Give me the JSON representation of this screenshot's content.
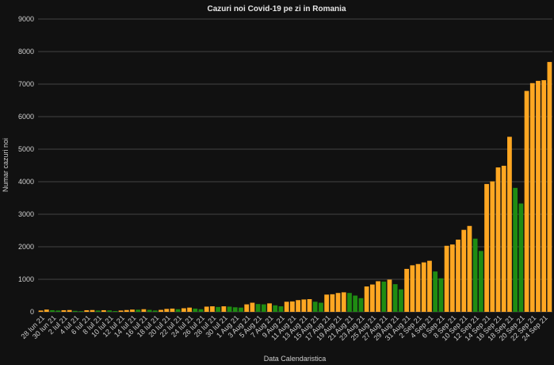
{
  "chart_data": {
    "type": "bar",
    "title": "Cazuri noi Covid-19 pe zi in Romania",
    "y_label": "Numar cazuri noi",
    "x_label": "Data Calendaristica",
    "categories": [
      "28 Iun 21",
      null,
      "30 Iun 21",
      null,
      "2 Iul 21",
      null,
      "4 Iul 21",
      null,
      "6 Iul 21",
      null,
      "8 Iul 21",
      null,
      "10 Iul 21",
      null,
      "12 Iul 21",
      null,
      "14 Iul 21",
      null,
      "16 Iul 21",
      null,
      "18 Iul 21",
      null,
      "20 Iul 21",
      null,
      "22 Iul 21",
      null,
      "24 Iul 21",
      null,
      "26 Iul 21",
      null,
      "28 Iul 21",
      null,
      "30 Iul 21",
      null,
      "1 Aug 21",
      null,
      "3 Aug 21",
      null,
      "5 Aug 21",
      null,
      "7 Aug 21",
      null,
      "9 Aug 21",
      null,
      "11 Aug 21",
      null,
      "13 Aug 21",
      null,
      "15 Aug 21",
      null,
      "17 Aug 21",
      null,
      "19 Aug 21",
      null,
      "21 Aug 21",
      null,
      "23 Aug 21",
      null,
      "25 Aug 21",
      null,
      "27 Aug 21",
      null,
      "29 Aug 21",
      null,
      "31 Aug 21",
      null,
      "2 Sep 21",
      null,
      "4 Sep 21",
      null,
      "6 Sep 21",
      null,
      "8 Sep 21",
      null,
      "10 Sep 21",
      null,
      "12 Sep 21",
      null,
      "14 Sep 21",
      null,
      "16 Sep 21",
      null,
      "18 Sep 21",
      null,
      "20 Sep 21",
      null,
      "22 Sep 21",
      null,
      "24 Sep 21",
      null
    ],
    "values": [
      40,
      70,
      50,
      40,
      50,
      55,
      30,
      20,
      50,
      55,
      40,
      50,
      45,
      25,
      40,
      55,
      70,
      65,
      80,
      60,
      40,
      60,
      90,
      100,
      80,
      110,
      130,
      100,
      80,
      160,
      170,
      150,
      170,
      160,
      140,
      130,
      230,
      280,
      240,
      230,
      260,
      200,
      170,
      310,
      320,
      360,
      380,
      390,
      310,
      280,
      530,
      540,
      580,
      600,
      580,
      500,
      420,
      780,
      840,
      940,
      930,
      990,
      850,
      690,
      1320,
      1430,
      1470,
      1520,
      1570,
      1240,
      1030,
      2030,
      2070,
      2220,
      2520,
      2640,
      2250,
      1870,
      3930,
      4010,
      4440,
      4490,
      5380,
      3810,
      3330,
      6790,
      7030,
      7100,
      7120,
      7680
    ],
    "colors": [
      "#ffa722",
      "#ffa722",
      "#1f8c12",
      "#1f8c12",
      "#ffa722",
      "#ffa722",
      "#1f8c12",
      "#1f8c12",
      "#ffa722",
      "#ffa722",
      "#1f8c12",
      "#ffa722",
      "#1f8c12",
      "#1f8c12",
      "#ffa722",
      "#ffa722",
      "#ffa722",
      "#1f8c12",
      "#ffa722",
      "#1f8c12",
      "#1f8c12",
      "#ffa722",
      "#ffa722",
      "#ffa722",
      "#1f8c12",
      "#ffa722",
      "#ffa722",
      "#1f8c12",
      "#1f8c12",
      "#ffa722",
      "#ffa722",
      "#1f8c12",
      "#ffa722",
      "#1f8c12",
      "#1f8c12",
      "#1f8c12",
      "#ffa722",
      "#ffa722",
      "#1f8c12",
      "#1f8c12",
      "#ffa722",
      "#1f8c12",
      "#1f8c12",
      "#ffa722",
      "#ffa722",
      "#ffa722",
      "#ffa722",
      "#ffa722",
      "#1f8c12",
      "#1f8c12",
      "#ffa722",
      "#ffa722",
      "#ffa722",
      "#ffa722",
      "#1f8c12",
      "#1f8c12",
      "#1f8c12",
      "#ffa722",
      "#ffa722",
      "#ffa722",
      "#1f8c12",
      "#ffa722",
      "#1f8c12",
      "#1f8c12",
      "#ffa722",
      "#ffa722",
      "#ffa722",
      "#ffa722",
      "#ffa722",
      "#1f8c12",
      "#1f8c12",
      "#ffa722",
      "#ffa722",
      "#ffa722",
      "#ffa722",
      "#ffa722",
      "#1f8c12",
      "#1f8c12",
      "#ffa722",
      "#ffa722",
      "#ffa722",
      "#ffa722",
      "#ffa722",
      "#1f8c12",
      "#1f8c12",
      "#ffa722",
      "#ffa722",
      "#ffa722",
      "#ffa722",
      "#ffa722"
    ],
    "ylim": [
      0,
      9000
    ],
    "yticks": [
      0,
      1000,
      2000,
      3000,
      4000,
      5000,
      6000,
      7000,
      8000,
      9000
    ],
    "grid": true
  }
}
